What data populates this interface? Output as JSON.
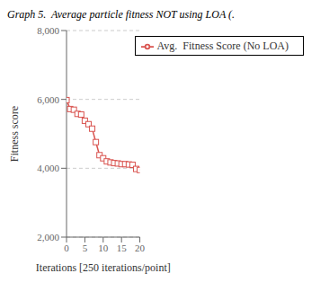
{
  "chart_data": {
    "type": "line",
    "title": "Graph 5.  Average particle fitness NOT using LOA (.",
    "xlabel": "Iterations [250 iterations/point]",
    "ylabel": "Fitness score",
    "x": [
      0,
      1,
      2,
      3,
      4,
      5,
      6,
      7,
      8,
      9,
      10,
      11,
      12,
      13,
      14,
      15,
      16,
      17,
      18,
      19,
      20
    ],
    "series": [
      {
        "name": "Avg.  Fitness Score (No LOA)",
        "color": "#d9534f",
        "marker": "square",
        "values": [
          5980,
          5720,
          5700,
          5580,
          5560,
          5380,
          5280,
          5150,
          4760,
          4380,
          4290,
          4200,
          4170,
          4150,
          4140,
          4120,
          4120,
          4110,
          4100,
          3980,
          3950
        ]
      }
    ],
    "xlim": [
      0,
      20
    ],
    "ylim": [
      2000,
      8000
    ],
    "xticks": [
      0,
      5,
      10,
      15,
      20
    ],
    "yticks": [
      {
        "value": 2000,
        "label": "2,000"
      },
      {
        "value": 4000,
        "label": "4,000"
      },
      {
        "value": 6000,
        "label": "6,000"
      },
      {
        "value": 8000,
        "label": "8,000"
      }
    ],
    "grid": "y",
    "legend": "upper right"
  }
}
